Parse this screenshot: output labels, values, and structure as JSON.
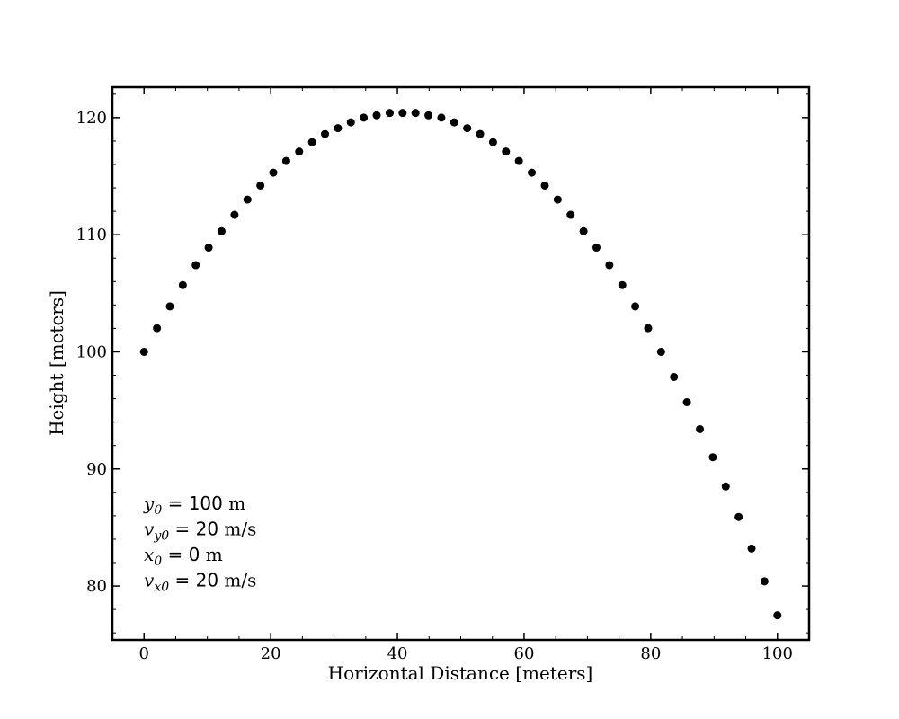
{
  "chart_data": {
    "type": "scatter",
    "xlabel": "Horizontal Distance [meters]",
    "ylabel": "Height [meters]",
    "xlim": [
      -5,
      105
    ],
    "ylim": [
      75.4,
      122.6
    ],
    "xticks": [
      0,
      20,
      40,
      60,
      80,
      100
    ],
    "yticks": [
      80,
      90,
      100,
      110,
      120
    ],
    "grid": false,
    "marker_color": "#000000",
    "series": [
      {
        "x": [
          0,
          2.04,
          4.08,
          6.12,
          8.16,
          10.2,
          12.24,
          14.29,
          16.33,
          18.37,
          20.41,
          22.45,
          24.49,
          26.53,
          28.57,
          30.61,
          32.65,
          34.69,
          36.73,
          38.78,
          40.82,
          42.86,
          44.9,
          46.94,
          48.98,
          51.02,
          53.06,
          55.1,
          57.14,
          59.18,
          61.22,
          63.27,
          65.31,
          67.35,
          69.39,
          71.43,
          73.47,
          75.51,
          77.55,
          79.59,
          81.63,
          83.67,
          85.71,
          87.76,
          89.8,
          91.84,
          93.88,
          95.92,
          97.96,
          100
        ],
        "y": [
          100,
          102.02,
          103.88,
          105.7,
          107.4,
          108.9,
          110.3,
          111.7,
          113.0,
          114.2,
          115.3,
          116.3,
          117.1,
          117.9,
          118.6,
          119.1,
          119.6,
          120.0,
          120.2,
          120.4,
          120.4,
          120.4,
          120.2,
          120.0,
          119.6,
          119.1,
          118.6,
          117.9,
          117.1,
          116.3,
          115.3,
          114.2,
          113.0,
          111.7,
          110.3,
          108.9,
          107.4,
          105.7,
          103.88,
          102.02,
          100.0,
          97.85,
          95.7,
          93.4,
          91.0,
          88.5,
          85.9,
          83.2,
          80.4,
          77.5
        ]
      }
    ],
    "annotations": [
      {
        "var": "y",
        "sub": "0",
        "value": "100",
        "unit": " m"
      },
      {
        "var": "v",
        "sub": "y0",
        "value": "20",
        "unit": " m/s"
      },
      {
        "var": "x",
        "sub": "0",
        "value": "0",
        "unit": " m"
      },
      {
        "var": "v",
        "sub": "x0",
        "value": "20",
        "unit": " m/s"
      }
    ]
  }
}
